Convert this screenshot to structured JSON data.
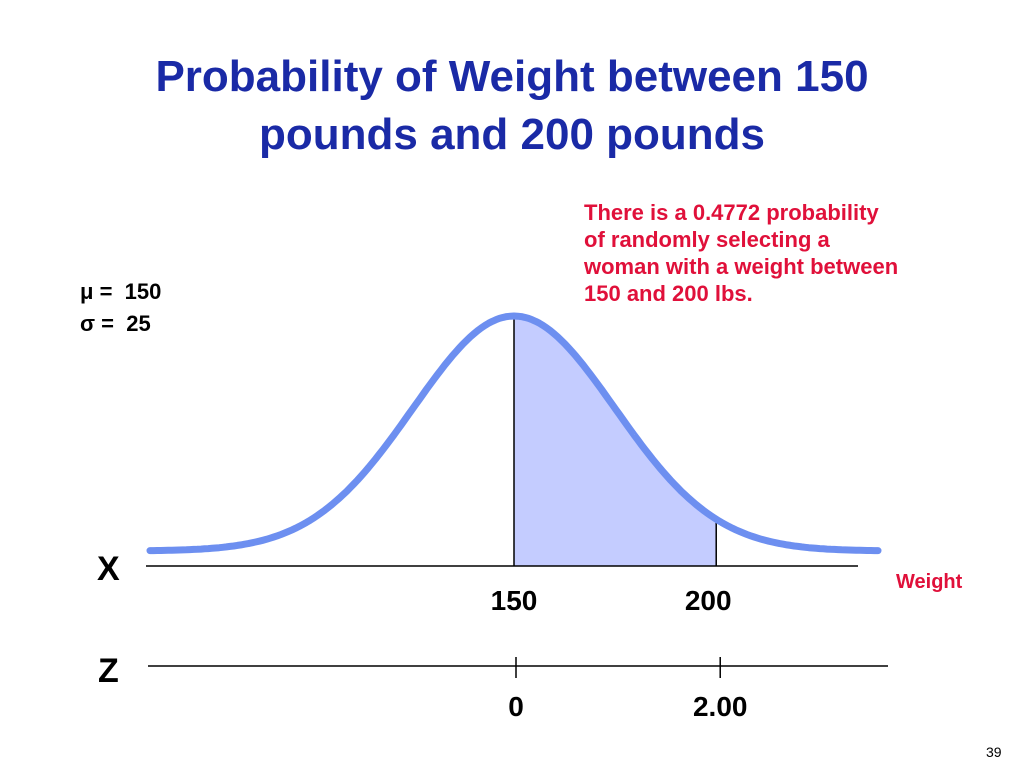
{
  "title": {
    "line1": "Probability of Weight between 150",
    "line2": "pounds and 200 pounds"
  },
  "note": {
    "lines": [
      "There  is  a  0.4772  probability",
      "of randomly selecting a",
      "woman with a  weight between",
      "150 and  200 lbs."
    ]
  },
  "params": {
    "mu_label": "μ =",
    "mu_value": "150",
    "sigma_label": "σ =",
    "sigma_value": "25"
  },
  "axes": {
    "x_name": "X",
    "x_title": "Weight",
    "x_ticks": [
      150,
      200
    ],
    "z_name": "Z",
    "z_ticks": [
      "0",
      "2.00"
    ]
  },
  "chart_data": {
    "type": "area",
    "distribution": "normal",
    "mean": 150,
    "sd": 25,
    "shaded_range": [
      150,
      200
    ],
    "probability": 0.4772,
    "x_axis_range": [
      60,
      240
    ],
    "z_range_shaded": [
      0,
      2.0
    ]
  },
  "colors": {
    "title": "#1a2aa6",
    "note": "#e0103a",
    "curve": "#6d8ff0",
    "shade": "#c4ccff",
    "axis": "#000000"
  },
  "page_number": "39"
}
